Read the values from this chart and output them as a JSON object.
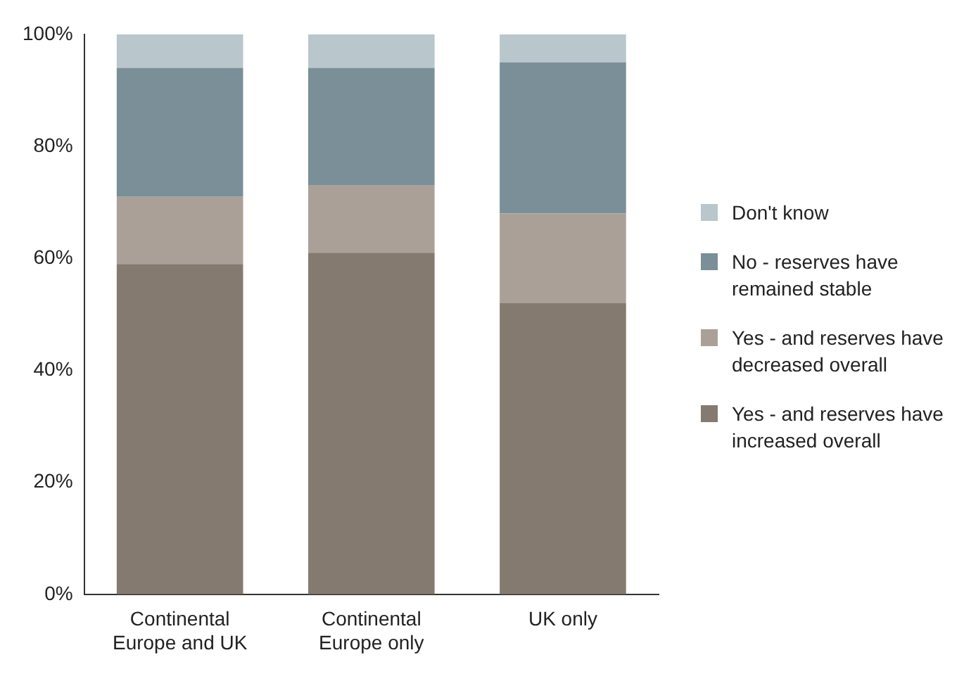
{
  "chart_data": {
    "type": "bar",
    "stacked": true,
    "categories": [
      "Continental Europe and UK",
      "Continental Europe only",
      "UK only"
    ],
    "series": [
      {
        "name": "Yes - and reserves have increased overall",
        "color": "#857a6f",
        "values": [
          59,
          61,
          52
        ]
      },
      {
        "name": "Yes - and reserves have decreased overall",
        "color": "#aba097",
        "values": [
          12,
          12,
          16
        ]
      },
      {
        "name": "No - reserves have remained stable",
        "color": "#7a8f98",
        "values": [
          23,
          21,
          27
        ]
      },
      {
        "name": "Don't know",
        "color": "#b9c6cc",
        "values": [
          6,
          6,
          5
        ]
      }
    ],
    "ylim": [
      0,
      100
    ],
    "yticks": [
      {
        "value": 0,
        "label": "0%"
      },
      {
        "value": 20,
        "label": "20%"
      },
      {
        "value": 40,
        "label": "40%"
      },
      {
        "value": 60,
        "label": "60%"
      },
      {
        "value": 80,
        "label": "80%"
      },
      {
        "value": 100,
        "label": "100%"
      }
    ],
    "grid": false,
    "legend": "right"
  }
}
